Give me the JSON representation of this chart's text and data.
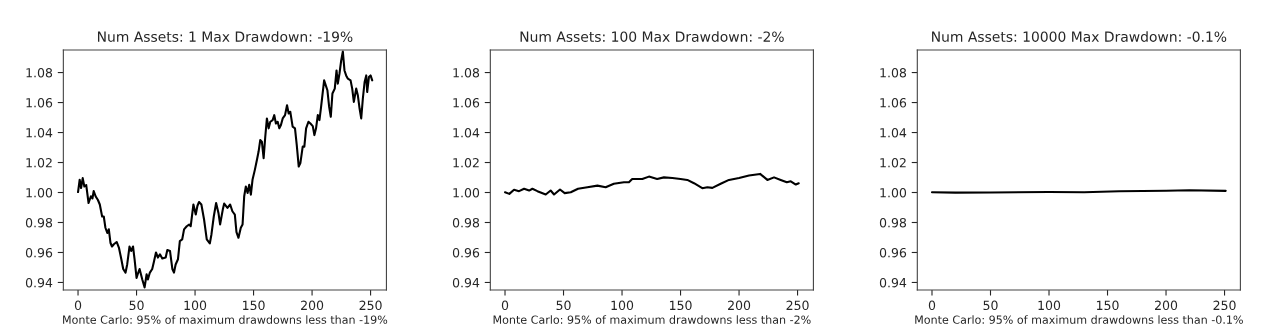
{
  "chart_data": [
    {
      "type": "line",
      "title": "Num Assets: 1 Max Drawdown: -19%",
      "xlabel": "Monte Carlo: 95% of maximum drawdowns less than -19%",
      "xlim": [
        -12.55,
        263.55
      ],
      "xticks": [
        0,
        50,
        100,
        150,
        200,
        250
      ],
      "ylim": [
        0.935,
        1.095
      ],
      "yticks": [
        {
          "value": 0.94,
          "label": "0.94"
        },
        {
          "value": 0.96,
          "label": "0.96"
        },
        {
          "value": 0.98,
          "label": "0.98"
        },
        {
          "value": 1.0,
          "label": "1.00"
        },
        {
          "value": 1.02,
          "label": "1.02"
        },
        {
          "value": 1.04,
          "label": "1.04"
        },
        {
          "value": 1.06,
          "label": "1.06"
        },
        {
          "value": 1.08,
          "label": "1.08"
        }
      ],
      "grid": false,
      "legend": false,
      "series": [
        {
          "color": "#000000",
          "x": [
            0,
            1.4,
            2.6,
            4,
            5.4,
            7,
            9,
            11,
            12.3,
            13.4,
            15,
            17,
            18.6,
            20.6,
            22,
            23.4,
            25,
            26.3,
            27.7,
            29,
            30.6,
            33,
            35,
            37,
            38.6,
            40.6,
            42,
            44,
            45.4,
            47,
            48.3,
            50,
            51,
            52.6,
            54.9,
            56.9,
            58.6,
            59.7,
            61.4,
            63.4,
            64.9,
            66.6,
            68.3,
            70,
            72,
            74.9,
            76.3,
            78.6,
            80.6,
            82,
            83.4,
            85.4,
            87,
            89,
            90.6,
            92.9,
            94.9,
            96.3,
            98.6,
            100.6,
            102,
            103.4,
            105.4,
            107.7,
            110,
            112.6,
            114,
            116,
            118,
            120,
            121.4,
            123.7,
            124.9,
            127.7,
            130,
            131.9,
            134,
            135.4,
            137.1,
            139.1,
            140.6,
            142,
            143.4,
            144.9,
            146.3,
            147.7,
            149.1,
            151.1,
            152.9,
            154.3,
            155.7,
            157.1,
            158.6,
            160,
            161.4,
            162.9,
            164.3,
            166.3,
            167.7,
            169.1,
            170.6,
            172,
            173.4,
            174.9,
            176.9,
            178.6,
            180,
            181.4,
            183.4,
            185.4,
            186.9,
            188.6,
            190,
            192,
            193.4,
            194.9,
            196.9,
            198.6,
            200.6,
            202,
            203.4,
            204.9,
            206.3,
            207.7,
            210.3,
            211.7,
            213.1,
            214.6,
            216,
            217.4,
            219.4,
            220.9,
            222,
            223.4,
            224.9,
            226.3,
            227.7,
            229.1,
            230.6,
            232.9,
            234.3,
            235.7,
            237.7,
            239.1,
            240.6,
            242,
            243.4,
            244.9,
            246.3,
            247.1,
            248.6,
            250,
            251.4
          ],
          "values": [
            1.0003,
            1.0085,
            1.003,
            1.0096,
            1.004,
            1.005,
            0.993,
            0.9975,
            0.996,
            1.001,
            0.9975,
            0.995,
            0.992,
            0.984,
            0.984,
            0.9765,
            0.973,
            0.9755,
            0.9665,
            0.964,
            0.9655,
            0.967,
            0.963,
            0.9555,
            0.949,
            0.9466,
            0.952,
            0.964,
            0.961,
            0.964,
            0.9555,
            0.943,
            0.9455,
            0.949,
            0.942,
            0.9367,
            0.9455,
            0.942,
            0.9466,
            0.949,
            0.954,
            0.96,
            0.9566,
            0.9588,
            0.956,
            0.9566,
            0.9617,
            0.961,
            0.949,
            0.9466,
            0.952,
            0.9555,
            0.9676,
            0.9687,
            0.9754,
            0.9775,
            0.9786,
            0.9775,
            0.992,
            0.9853,
            0.991,
            0.9937,
            0.992,
            0.982,
            0.9687,
            0.966,
            0.972,
            0.984,
            0.993,
            0.9864,
            0.9787,
            0.9886,
            0.9926,
            0.9897,
            0.992,
            0.9875,
            0.9853,
            0.9736,
            0.9698,
            0.9765,
            0.9787,
            0.9975,
            1.004,
            0.9997,
            1.0052,
            0.9986,
            1.0085,
            1.0151,
            1.0218,
            1.0273,
            1.035,
            1.0339,
            1.0229,
            1.0372,
            1.0494,
            1.0428,
            1.0472,
            1.0483,
            1.0516,
            1.046,
            1.0472,
            1.0428,
            1.045,
            1.0494,
            1.0516,
            1.0582,
            1.0527,
            1.0538,
            1.0439,
            1.0428,
            1.0317,
            1.0173,
            1.0196,
            1.0306,
            1.0306,
            1.0428,
            1.0472,
            1.046,
            1.0443,
            1.0383,
            1.0428,
            1.0516,
            1.0483,
            1.0571,
            1.0748,
            1.0715,
            1.0682,
            1.0571,
            1.0505,
            1.066,
            1.0693,
            1.0814,
            1.0726,
            1.0792,
            1.0881,
            1.094,
            1.0814,
            1.0781,
            1.0759,
            1.0748,
            1.0693,
            1.0604,
            1.0693,
            1.0649,
            1.056,
            1.0494,
            1.0627,
            1.0737,
            1.0781,
            1.067,
            1.077,
            1.0781,
            1.0748
          ]
        }
      ]
    },
    {
      "type": "line",
      "title": "Num Assets: 100 Max Drawdown: -2%",
      "xlabel": "Monte Carlo: 95% of maximum drawdowns less than -2%",
      "xlim": [
        -12.55,
        263.55
      ],
      "xticks": [
        0,
        50,
        100,
        150,
        200,
        250
      ],
      "ylim": [
        0.935,
        1.095
      ],
      "yticks": [
        {
          "value": 0.94,
          "label": "0.94"
        },
        {
          "value": 0.96,
          "label": "0.96"
        },
        {
          "value": 0.98,
          "label": "0.98"
        },
        {
          "value": 1.0,
          "label": "1.00"
        },
        {
          "value": 1.02,
          "label": "1.02"
        },
        {
          "value": 1.04,
          "label": "1.04"
        },
        {
          "value": 1.06,
          "label": "1.06"
        },
        {
          "value": 1.08,
          "label": "1.08"
        }
      ],
      "grid": false,
      "legend": false,
      "series": [
        {
          "color": "#000000",
          "x": [
            0,
            3.7,
            7.7,
            12,
            16.3,
            20.6,
            23.4,
            27.7,
            34.8,
            39,
            41.9,
            47,
            51,
            56.2,
            62.4,
            70.4,
            79,
            86,
            93,
            101.6,
            105.9,
            108.7,
            117.3,
            123,
            130,
            135.8,
            143,
            150,
            155.8,
            161.5,
            168.6,
            172.9,
            177.2,
            184.3,
            191.4,
            200,
            208.5,
            218,
            224.2,
            229.9,
            235.6,
            240.8,
            244.2,
            248.5,
            251
          ],
          "values": [
            1.0002,
            0.9991,
            1.0018,
            1.0009,
            1.0025,
            1.0013,
            1.0025,
            1.0009,
            0.9987,
            1.0013,
            0.9987,
            1.002,
            0.9996,
            1.0002,
            1.0025,
            1.0035,
            1.0046,
            1.0035,
            1.0058,
            1.0068,
            1.0068,
            1.009,
            1.009,
            1.0106,
            1.009,
            1.0101,
            1.0097,
            1.009,
            1.0084,
            1.0062,
            1.0029,
            1.0035,
            1.0031,
            1.0058,
            1.0084,
            1.0097,
            1.0113,
            1.0124,
            1.0084,
            1.0101,
            1.0084,
            1.0068,
            1.0075,
            1.0053,
            1.0062
          ]
        }
      ]
    },
    {
      "type": "line",
      "title": "Num Assets: 10000 Max Drawdown: -0.1%",
      "xlabel": "Monte Carlo: 95% of maximum drawdowns less than -0.1%",
      "xlim": [
        -12.55,
        263.55
      ],
      "xticks": [
        0,
        50,
        100,
        150,
        200,
        250
      ],
      "ylim": [
        0.935,
        1.095
      ],
      "yticks": [
        {
          "value": 0.94,
          "label": "0.94"
        },
        {
          "value": 0.96,
          "label": "0.96"
        },
        {
          "value": 0.98,
          "label": "0.98"
        },
        {
          "value": 1.0,
          "label": "1.00"
        },
        {
          "value": 1.02,
          "label": "1.02"
        },
        {
          "value": 1.04,
          "label": "1.04"
        },
        {
          "value": 1.06,
          "label": "1.06"
        },
        {
          "value": 1.08,
          "label": "1.08"
        }
      ],
      "grid": false,
      "legend": false,
      "series": [
        {
          "color": "#000000",
          "x": [
            0,
            20,
            50,
            100,
            130,
            160,
            200,
            220,
            251
          ],
          "values": [
            1.0002,
            0.9999,
            1.0,
            1.0003,
            1.0002,
            1.0008,
            1.0012,
            1.0015,
            1.0011
          ]
        }
      ]
    }
  ]
}
